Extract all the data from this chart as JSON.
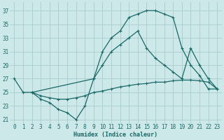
{
  "background_color": "#cce8e8",
  "grid_color": "#aacccc",
  "line_color": "#1a6868",
  "xlabel": "Humidex (Indice chaleur)",
  "xlim": [
    -0.5,
    23.5
  ],
  "ylim": [
    20.5,
    38.2
  ],
  "xticks": [
    0,
    1,
    2,
    3,
    4,
    5,
    6,
    7,
    8,
    9,
    10,
    11,
    12,
    13,
    14,
    15,
    16,
    17,
    18,
    19,
    20,
    21,
    22,
    23
  ],
  "yticks": [
    21,
    23,
    25,
    27,
    29,
    31,
    33,
    35,
    37
  ],
  "series": [
    {
      "x": [
        0,
        1,
        2,
        3,
        4,
        5,
        6,
        7,
        8,
        9,
        10,
        11,
        12,
        13,
        14,
        15,
        16,
        17,
        18,
        19,
        20,
        21,
        22,
        23
      ],
      "y": [
        27,
        25,
        25,
        24,
        23.5,
        22.5,
        22,
        21,
        23,
        27,
        31,
        33,
        34,
        36,
        36.5,
        37,
        37,
        36.5,
        36,
        31.5,
        29,
        27.5,
        25.5,
        25.5
      ]
    },
    {
      "x": [
        2,
        9,
        10,
        11,
        12,
        13,
        14,
        15,
        16,
        17,
        18,
        19,
        20,
        21,
        22,
        23
      ],
      "y": [
        25,
        27,
        29,
        31,
        32,
        33,
        34,
        31.5,
        30,
        29,
        28,
        27,
        31.5,
        29,
        27,
        25.5
      ]
    },
    {
      "x": [
        2,
        3,
        4,
        5,
        6,
        7,
        8,
        9,
        10,
        11,
        12,
        13,
        14,
        15,
        16,
        17,
        18,
        19,
        20,
        21,
        22,
        23
      ],
      "y": [
        25,
        24.5,
        24.2,
        24,
        24,
        24.2,
        24.5,
        25,
        25.2,
        25.5,
        25.8,
        26,
        26.2,
        26.3,
        26.5,
        26.5,
        26.7,
        26.8,
        26.8,
        26.7,
        26.5,
        25.5
      ]
    }
  ]
}
